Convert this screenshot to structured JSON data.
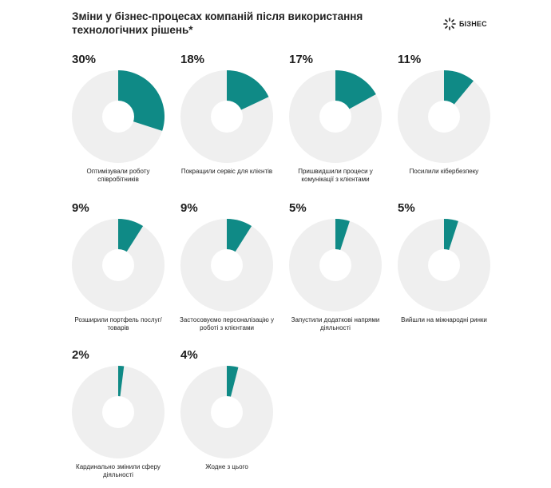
{
  "title": "Зміни у бізнес-процесах компаній після використання технологічних рішень*",
  "brand": {
    "name": "БІЗНЕС",
    "icon": "sparkle-logo-icon"
  },
  "colors": {
    "accent": "#0f8a86",
    "track": "#efefef",
    "hole": "#ffffff"
  },
  "chart_data": {
    "type": "pie",
    "title": "Зміни у бізнес-процесах компаній після використання технологічних рішень*",
    "items": [
      {
        "label": "Оптимізували роботу співробітників",
        "value": 30,
        "value_label": "30%"
      },
      {
        "label": "Покращили сервіс для клієнтів",
        "value": 18,
        "value_label": "18%"
      },
      {
        "label": "Пришвидшили процеси у комунікації з клієнтами",
        "value": 17,
        "value_label": "17%"
      },
      {
        "label": "Посилили кібербезпеку",
        "value": 11,
        "value_label": "11%"
      },
      {
        "label": "Розширили портфель послуг/ товарів",
        "value": 9,
        "value_label": "9%"
      },
      {
        "label": "Застосовуємо персоналізацію у роботі з клієнтами",
        "value": 9,
        "value_label": "9%"
      },
      {
        "label": "Запустили додаткові напрями діяльності",
        "value": 5,
        "value_label": "5%"
      },
      {
        "label": "Вийшли на міжнародні ринки",
        "value": 5,
        "value_label": "5%"
      },
      {
        "label": "Кардинально змінили сферу діяльності",
        "value": 2,
        "value_label": "2%"
      },
      {
        "label": "Жодне з цього",
        "value": 4,
        "value_label": "4%"
      }
    ]
  }
}
